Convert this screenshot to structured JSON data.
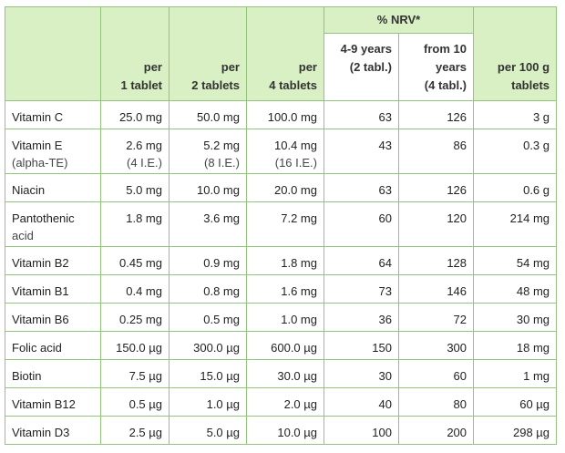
{
  "table": {
    "nrv_title": "% NRV*",
    "headers": {
      "col1": [
        "per",
        "1 tablet"
      ],
      "col2": [
        "per",
        "2 tablets"
      ],
      "col3": [
        "per",
        "4 tablets"
      ],
      "nrv_child": [
        "4-9 years",
        "(2 tabl.)"
      ],
      "nrv_adult": [
        "from 10",
        "years",
        "(4 tabl.)"
      ],
      "per100": [
        "per 100 g",
        "tablets"
      ]
    },
    "rows": [
      {
        "name": [
          "Vitamin C"
        ],
        "t1": [
          "25.0 mg"
        ],
        "t2": [
          "50.0 mg"
        ],
        "t4": [
          "100.0 mg"
        ],
        "nrv_child": "63",
        "nrv_adult": "126",
        "per100": "3 g"
      },
      {
        "name": [
          "Vitamin E",
          "(alpha-TE)"
        ],
        "t1": [
          "2.6 mg",
          "(4 I.E.)"
        ],
        "t2": [
          "5.2 mg",
          "(8 I.E.)"
        ],
        "t4": [
          "10.4 mg",
          "(16 I.E.)"
        ],
        "nrv_child": "43",
        "nrv_adult": "86",
        "per100": "0.3 g"
      },
      {
        "name": [
          "Niacin"
        ],
        "t1": [
          "5.0 mg"
        ],
        "t2": [
          "10.0 mg"
        ],
        "t4": [
          "20.0 mg"
        ],
        "nrv_child": "63",
        "nrv_adult": "126",
        "per100": "0.6 g"
      },
      {
        "name": [
          "Pantothenic",
          "acid"
        ],
        "t1": [
          "1.8 mg"
        ],
        "t2": [
          "3.6 mg"
        ],
        "t4": [
          "7.2 mg"
        ],
        "nrv_child": "60",
        "nrv_adult": "120",
        "per100": "214 mg"
      },
      {
        "name": [
          "Vitamin B2"
        ],
        "t1": [
          "0.45 mg"
        ],
        "t2": [
          "0.9 mg"
        ],
        "t4": [
          "1.8 mg"
        ],
        "nrv_child": "64",
        "nrv_adult": "128",
        "per100": "54 mg"
      },
      {
        "name": [
          "Vitamin B1"
        ],
        "t1": [
          "0.4 mg"
        ],
        "t2": [
          "0.8 mg"
        ],
        "t4": [
          "1.6 mg"
        ],
        "nrv_child": "73",
        "nrv_adult": "146",
        "per100": "48 mg"
      },
      {
        "name": [
          "Vitamin B6"
        ],
        "t1": [
          "0.25 mg"
        ],
        "t2": [
          "0.5 mg"
        ],
        "t4": [
          "1.0 mg"
        ],
        "nrv_child": "36",
        "nrv_adult": "72",
        "per100": "30 mg"
      },
      {
        "name": [
          "Folic acid"
        ],
        "t1": [
          "150.0 µg"
        ],
        "t2": [
          "300.0 µg"
        ],
        "t4": [
          "600.0 µg"
        ],
        "nrv_child": "150",
        "nrv_adult": "300",
        "per100": "18 mg"
      },
      {
        "name": [
          "Biotin"
        ],
        "t1": [
          "7.5 µg"
        ],
        "t2": [
          "15.0 µg"
        ],
        "t4": [
          "30.0 µg"
        ],
        "nrv_child": "30",
        "nrv_adult": "60",
        "per100": "1 mg"
      },
      {
        "name": [
          "Vitamin B12"
        ],
        "t1": [
          "0.5 µg"
        ],
        "t2": [
          "1.0 µg"
        ],
        "t4": [
          "2.0 µg"
        ],
        "nrv_child": "40",
        "nrv_adult": "80",
        "per100": "60 µg"
      },
      {
        "name": [
          "Vitamin D3"
        ],
        "t1": [
          "2.5 µg"
        ],
        "t2": [
          "5.0 µg"
        ],
        "t4": [
          "10.0 µg"
        ],
        "nrv_child": "100",
        "nrv_adult": "200",
        "per100": "298 µg"
      }
    ]
  },
  "colors": {
    "header_bg": "#d9f0c4",
    "border": "#93c47d",
    "text": "#222222"
  }
}
